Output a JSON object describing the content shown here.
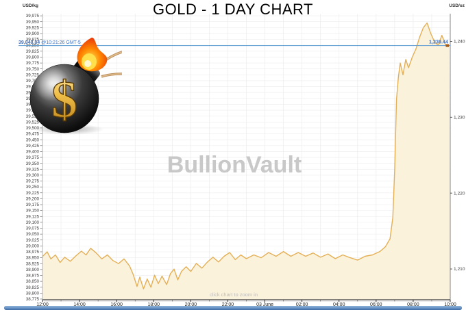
{
  "header": {
    "title": "GOLD - 1 DAY CHART",
    "left_unit": "USD/kg",
    "right_unit": "USD/oz"
  },
  "watermark": "BullionVault",
  "hint": "click chart to zoom in",
  "bomb_dollar": "$",
  "annotations": {
    "session_value": "39,848.84",
    "session_time": " @10:21:26 GMT-5",
    "last_price": "1,239.44"
  },
  "chart_data": {
    "type": "area",
    "title": "GOLD - 1 DAY CHART",
    "left_axis": {
      "unit": "USD/kg",
      "min": 38775,
      "max": 39975,
      "step": 25
    },
    "right_axis": {
      "unit": "USD/oz",
      "ticks": [
        1240,
        1230,
        1220,
        1210
      ],
      "kg_per_oz": 32.1507
    },
    "hours_span": [
      0,
      22
    ],
    "y_domain_kg": [
      38772,
      39984
    ],
    "session_line_value_kg": 39848.84,
    "last_price_oz": 1239.44,
    "x_ticks": [
      {
        "t": 0,
        "label": "12:00"
      },
      {
        "t": 2,
        "label": "14:00"
      },
      {
        "t": 4,
        "label": "16:00"
      },
      {
        "t": 6,
        "label": "18:00"
      },
      {
        "t": 8,
        "label": "20:00"
      },
      {
        "t": 10,
        "label": "22:00"
      },
      {
        "t": 12,
        "label": "03 June"
      },
      {
        "t": 14,
        "label": "02:00"
      },
      {
        "t": 16,
        "label": "04:00"
      },
      {
        "t": 18,
        "label": "06:00"
      },
      {
        "t": 20,
        "label": "08:00"
      },
      {
        "t": 22,
        "label": "10:00"
      }
    ],
    "series": [
      {
        "name": "gold_usd_per_kg",
        "points": [
          [
            0,
            38955
          ],
          [
            0.25,
            38975
          ],
          [
            0.45,
            38945
          ],
          [
            0.7,
            38962
          ],
          [
            0.95,
            38930
          ],
          [
            1.2,
            38952
          ],
          [
            1.5,
            38935
          ],
          [
            1.8,
            38958
          ],
          [
            2.1,
            38978
          ],
          [
            2.35,
            38962
          ],
          [
            2.6,
            38990
          ],
          [
            2.9,
            38970
          ],
          [
            3.2,
            38945
          ],
          [
            3.5,
            38962
          ],
          [
            3.8,
            38938
          ],
          [
            4.1,
            38925
          ],
          [
            4.4,
            38945
          ],
          [
            4.7,
            38915
          ],
          [
            4.9,
            38878
          ],
          [
            5.1,
            38828
          ],
          [
            5.25,
            38868
          ],
          [
            5.45,
            38818
          ],
          [
            5.65,
            38860
          ],
          [
            5.85,
            38825
          ],
          [
            6.05,
            38876
          ],
          [
            6.25,
            38840
          ],
          [
            6.45,
            38872
          ],
          [
            6.7,
            38836
          ],
          [
            6.9,
            38882
          ],
          [
            7.1,
            38902
          ],
          [
            7.3,
            38856
          ],
          [
            7.5,
            38892
          ],
          [
            7.75,
            38912
          ],
          [
            8,
            38892
          ],
          [
            8.3,
            38926
          ],
          [
            8.6,
            38906
          ],
          [
            8.9,
            38932
          ],
          [
            9.2,
            38952
          ],
          [
            9.5,
            38932
          ],
          [
            9.8,
            38956
          ],
          [
            10.1,
            38972
          ],
          [
            10.4,
            38942
          ],
          [
            10.7,
            38962
          ],
          [
            11,
            38946
          ],
          [
            11.4,
            38962
          ],
          [
            11.8,
            38950
          ],
          [
            12.2,
            38972
          ],
          [
            12.6,
            38956
          ],
          [
            13,
            38976
          ],
          [
            13.4,
            38956
          ],
          [
            13.8,
            38972
          ],
          [
            14.2,
            38956
          ],
          [
            14.6,
            38970
          ],
          [
            15,
            38952
          ],
          [
            15.4,
            38966
          ],
          [
            15.8,
            38946
          ],
          [
            16.2,
            38962
          ],
          [
            16.6,
            38950
          ],
          [
            17,
            38940
          ],
          [
            17.4,
            38956
          ],
          [
            17.8,
            38962
          ],
          [
            18.2,
            38976
          ],
          [
            18.5,
            38996
          ],
          [
            18.75,
            39030
          ],
          [
            18.9,
            39120
          ],
          [
            19,
            39320
          ],
          [
            19.1,
            39620
          ],
          [
            19.2,
            39715
          ],
          [
            19.3,
            39775
          ],
          [
            19.45,
            39725
          ],
          [
            19.6,
            39790
          ],
          [
            19.75,
            39755
          ],
          [
            19.95,
            39800
          ],
          [
            20.15,
            39835
          ],
          [
            20.35,
            39885
          ],
          [
            20.55,
            39925
          ],
          [
            20.75,
            39945
          ],
          [
            20.95,
            39900
          ],
          [
            21.15,
            39865
          ],
          [
            21.35,
            39850
          ],
          [
            21.55,
            39892
          ],
          [
            21.75,
            39852
          ],
          [
            21.95,
            39849
          ]
        ]
      }
    ],
    "colors": {
      "line": "#E4AF55",
      "fill": "#FBF2DB",
      "grid": "#ECECEC",
      "session_line": "#5B9BD5",
      "annotation_text": "#3E72C4",
      "marker": "#A8590F",
      "watermark": "#C8C8C8"
    }
  }
}
